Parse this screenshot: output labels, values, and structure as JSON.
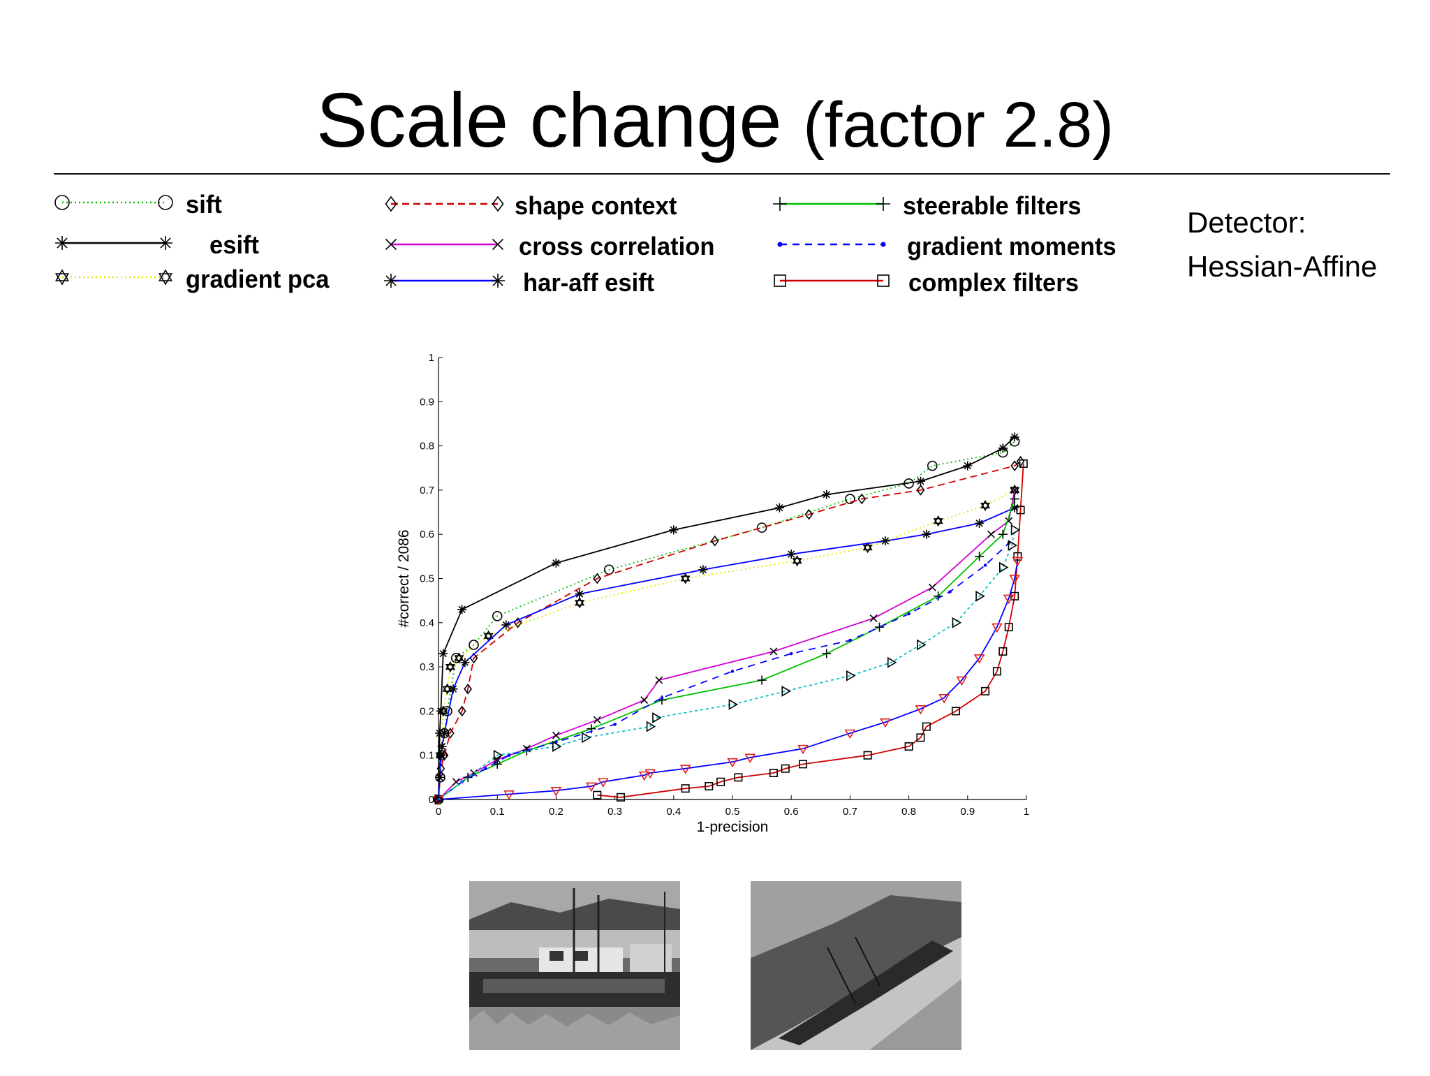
{
  "slide": {
    "title_main": "Scale change",
    "title_sub": "(factor 2.8)",
    "detector_line1": "Detector:",
    "detector_line2": "Hessian-Affine"
  },
  "legend": [
    {
      "label": "sift",
      "color": "#00c000",
      "dash": "2,4",
      "marker": "circle"
    },
    {
      "label": "esift",
      "color": "#000000",
      "dash": "",
      "marker": "asterisk"
    },
    {
      "label": "gradient pca",
      "color": "#e6e600",
      "dash": "2,4",
      "marker": "hexagram"
    },
    {
      "label": "shape context",
      "color": "#d00000",
      "dash": "10,6",
      "marker": "diamond"
    },
    {
      "label": "cross correlation",
      "color": "#d000d0",
      "dash": "",
      "marker": "x"
    },
    {
      "label": "har-aff esift",
      "color": "#0000ff",
      "dash": "",
      "marker": "asterisk"
    },
    {
      "label": "steerable filters",
      "color": "#00c000",
      "dash": "",
      "marker": "plus"
    },
    {
      "label": "gradient moments",
      "color": "#0000ff",
      "dash": "10,8",
      "marker": "dot"
    },
    {
      "label": "complex filters",
      "color": "#d00000",
      "dash": "",
      "marker": "square"
    }
  ],
  "chart_data": {
    "type": "line",
    "xlabel": "1-precision",
    "ylabel": "#correct / 2086",
    "xlim": [
      0,
      1
    ],
    "ylim": [
      0,
      1
    ],
    "grid": true,
    "xticks": [
      "0",
      "0.1",
      "0.2",
      "0.3",
      "0.4",
      "0.5",
      "0.6",
      "0.7",
      "0.8",
      "0.9",
      "1"
    ],
    "yticks": [
      "0",
      "0.1",
      "0.2",
      "0.3",
      "0.4",
      "0.5",
      "0.6",
      "0.7",
      "0.8",
      "0.9",
      "1"
    ],
    "series": [
      {
        "name": "sift",
        "color": "#00c000",
        "dash": "2,4",
        "marker": "circle",
        "x": [
          0,
          0.003,
          0.006,
          0.01,
          0.015,
          0.03,
          0.06,
          0.1,
          0.29,
          0.55,
          0.7,
          0.8,
          0.84,
          0.96,
          0.98
        ],
        "y": [
          0,
          0.05,
          0.1,
          0.15,
          0.2,
          0.32,
          0.35,
          0.415,
          0.52,
          0.615,
          0.68,
          0.715,
          0.755,
          0.785,
          0.81
        ]
      },
      {
        "name": "esift",
        "color": "#000000",
        "dash": "",
        "marker": "asterisk",
        "x": [
          0,
          0.002,
          0.004,
          0.008,
          0.04,
          0.2,
          0.4,
          0.58,
          0.66,
          0.82,
          0.9,
          0.96,
          0.98
        ],
        "y": [
          0,
          0.15,
          0.2,
          0.33,
          0.43,
          0.535,
          0.61,
          0.66,
          0.69,
          0.72,
          0.755,
          0.795,
          0.82
        ]
      },
      {
        "name": "gradient pca",
        "color": "#e6e600",
        "dash": "2,4",
        "marker": "hexagram",
        "x": [
          0,
          0.003,
          0.008,
          0.015,
          0.02,
          0.035,
          0.085,
          0.24,
          0.42,
          0.61,
          0.73,
          0.85,
          0.93,
          0.98
        ],
        "y": [
          0,
          0.1,
          0.2,
          0.25,
          0.3,
          0.32,
          0.37,
          0.445,
          0.5,
          0.54,
          0.57,
          0.63,
          0.665,
          0.7
        ]
      },
      {
        "name": "shape context",
        "color": "#d00000",
        "dash": "10,6",
        "marker": "diamond",
        "x": [
          0,
          0.004,
          0.01,
          0.02,
          0.04,
          0.05,
          0.06,
          0.135,
          0.27,
          0.47,
          0.63,
          0.72,
          0.82,
          0.98,
          0.99
        ],
        "y": [
          0,
          0.07,
          0.1,
          0.15,
          0.2,
          0.25,
          0.32,
          0.4,
          0.5,
          0.585,
          0.645,
          0.68,
          0.7,
          0.755,
          0.765
        ]
      },
      {
        "name": "cross correlation",
        "color": "#d000d0",
        "dash": "",
        "marker": "x",
        "x": [
          0,
          0.03,
          0.06,
          0.1,
          0.15,
          0.2,
          0.27,
          0.35,
          0.375,
          0.57,
          0.74,
          0.84,
          0.94,
          0.97,
          0.98
        ],
        "y": [
          0,
          0.04,
          0.06,
          0.09,
          0.115,
          0.145,
          0.18,
          0.225,
          0.27,
          0.335,
          0.41,
          0.48,
          0.6,
          0.63,
          0.7
        ]
      },
      {
        "name": "har-aff esift",
        "color": "#0000ff",
        "dash": "",
        "marker": "asterisk",
        "x": [
          0,
          0.002,
          0.004,
          0.006,
          0.01,
          0.025,
          0.045,
          0.115,
          0.24,
          0.45,
          0.6,
          0.76,
          0.83,
          0.92,
          0.98
        ],
        "y": [
          0,
          0.05,
          0.1,
          0.12,
          0.15,
          0.25,
          0.31,
          0.395,
          0.465,
          0.52,
          0.555,
          0.585,
          0.6,
          0.625,
          0.66
        ]
      },
      {
        "name": "steerable filters",
        "color": "#00c000",
        "dash": "",
        "marker": "plus",
        "x": [
          0,
          0.05,
          0.1,
          0.15,
          0.26,
          0.38,
          0.55,
          0.66,
          0.75,
          0.85,
          0.92,
          0.96,
          0.98
        ],
        "y": [
          0,
          0.05,
          0.08,
          0.11,
          0.16,
          0.225,
          0.27,
          0.33,
          0.39,
          0.46,
          0.55,
          0.6,
          0.68
        ]
      },
      {
        "name": "gradient moments",
        "color": "#0000ff",
        "dash": "10,8",
        "marker": "dot",
        "x": [
          0,
          0.04,
          0.08,
          0.12,
          0.2,
          0.3,
          0.38,
          0.5,
          0.6,
          0.7,
          0.8,
          0.87,
          0.93,
          0.97
        ],
        "y": [
          0,
          0.04,
          0.07,
          0.1,
          0.13,
          0.17,
          0.23,
          0.29,
          0.33,
          0.36,
          0.42,
          0.47,
          0.53,
          0.58
        ]
      },
      {
        "name": "complex filters",
        "color": "#d00000",
        "dash": "",
        "marker": "square",
        "x": [
          0.27,
          0.31,
          0.42,
          0.46,
          0.48,
          0.51,
          0.57,
          0.59,
          0.62,
          0.73,
          0.8,
          0.82,
          0.83,
          0.88,
          0.93,
          0.95,
          0.96,
          0.97,
          0.98,
          0.985,
          0.99,
          0.995
        ],
        "y": [
          0.01,
          0.005,
          0.025,
          0.03,
          0.04,
          0.05,
          0.06,
          0.07,
          0.08,
          0.1,
          0.12,
          0.14,
          0.165,
          0.2,
          0.245,
          0.29,
          0.335,
          0.39,
          0.46,
          0.55,
          0.655,
          0.76
        ]
      },
      {
        "name": "",
        "color": "#0000ff",
        "dash": "",
        "marker": "triangle-down",
        "marker_color": "#e02020",
        "x": [
          0,
          0.12,
          0.2,
          0.26,
          0.28,
          0.35,
          0.36,
          0.42,
          0.5,
          0.53,
          0.62,
          0.7,
          0.76,
          0.82,
          0.86,
          0.89,
          0.92,
          0.95,
          0.97,
          0.98,
          0.985
        ],
        "y": [
          0,
          0.012,
          0.02,
          0.03,
          0.04,
          0.055,
          0.06,
          0.07,
          0.085,
          0.095,
          0.115,
          0.15,
          0.175,
          0.205,
          0.23,
          0.27,
          0.32,
          0.39,
          0.455,
          0.5,
          0.54
        ]
      },
      {
        "name": "",
        "color": "#00c0c0",
        "dash": "4,4",
        "marker": "triangle-right",
        "marker_color": "#000000",
        "x": [
          0,
          0.1,
          0.2,
          0.25,
          0.36,
          0.37,
          0.5,
          0.59,
          0.7,
          0.77,
          0.82,
          0.88,
          0.92,
          0.96,
          0.975,
          0.98
        ],
        "y": [
          0,
          0.1,
          0.12,
          0.14,
          0.165,
          0.185,
          0.215,
          0.245,
          0.28,
          0.31,
          0.35,
          0.4,
          0.46,
          0.525,
          0.575,
          0.61
        ]
      }
    ]
  }
}
